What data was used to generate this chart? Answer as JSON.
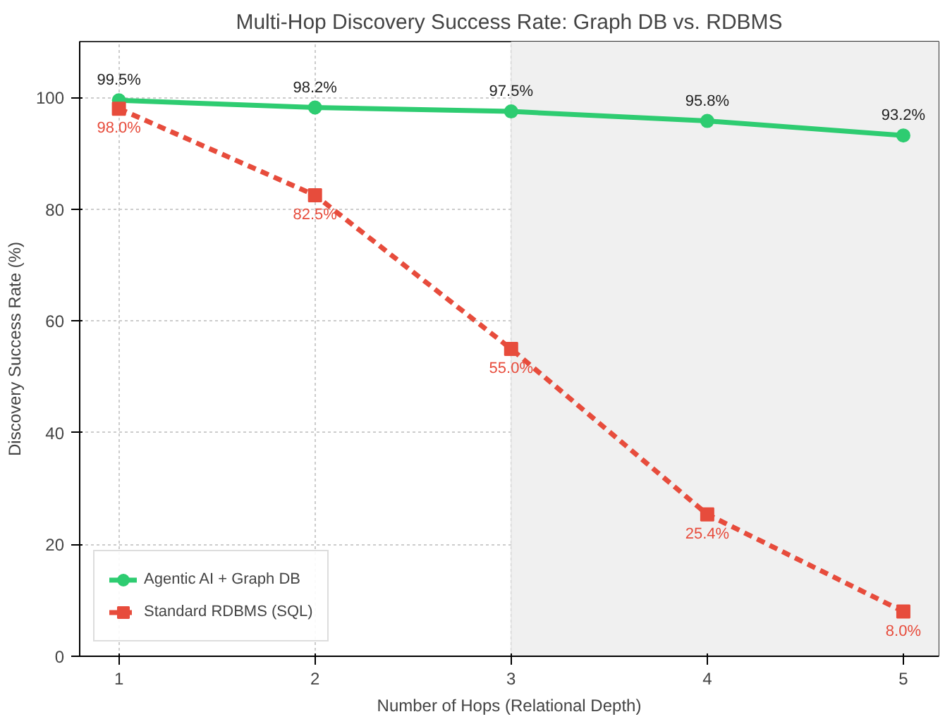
{
  "chart_data": {
    "type": "line",
    "title": "Multi-Hop Discovery Success Rate: Graph DB vs. RDBMS",
    "xlabel": "Number of Hops (Relational Depth)",
    "ylabel": "Discovery Success Rate (%)",
    "x": [
      1,
      2,
      3,
      4,
      5
    ],
    "series": [
      {
        "name": "Agentic AI + Graph DB",
        "color": "#2ecc71",
        "values": [
          99.5,
          98.2,
          97.5,
          95.8,
          93.2
        ],
        "marker": "circle",
        "line_style": "solid",
        "value_labels": [
          "99.5%",
          "98.2%",
          "97.5%",
          "95.8%",
          "93.2%"
        ]
      },
      {
        "name": "Standard RDBMS (SQL)",
        "color": "#e74c3c",
        "values": [
          98.0,
          82.5,
          55.0,
          25.4,
          8.0
        ],
        "marker": "square",
        "line_style": "dashed",
        "value_labels": [
          "98.0%",
          "82.5%",
          "55.0%",
          "25.4%",
          "8.0%"
        ]
      }
    ],
    "xlim": [
      0.8,
      5.18
    ],
    "ylim": [
      0,
      110
    ],
    "xticks": [
      1,
      2,
      3,
      4,
      5
    ],
    "yticks": [
      0,
      20,
      40,
      60,
      80,
      100
    ],
    "bands": [
      {
        "axis": "x",
        "from": 3,
        "to": 5.18,
        "color": "#f0f0f0"
      }
    ],
    "grid": true,
    "legend": "bottom left"
  }
}
